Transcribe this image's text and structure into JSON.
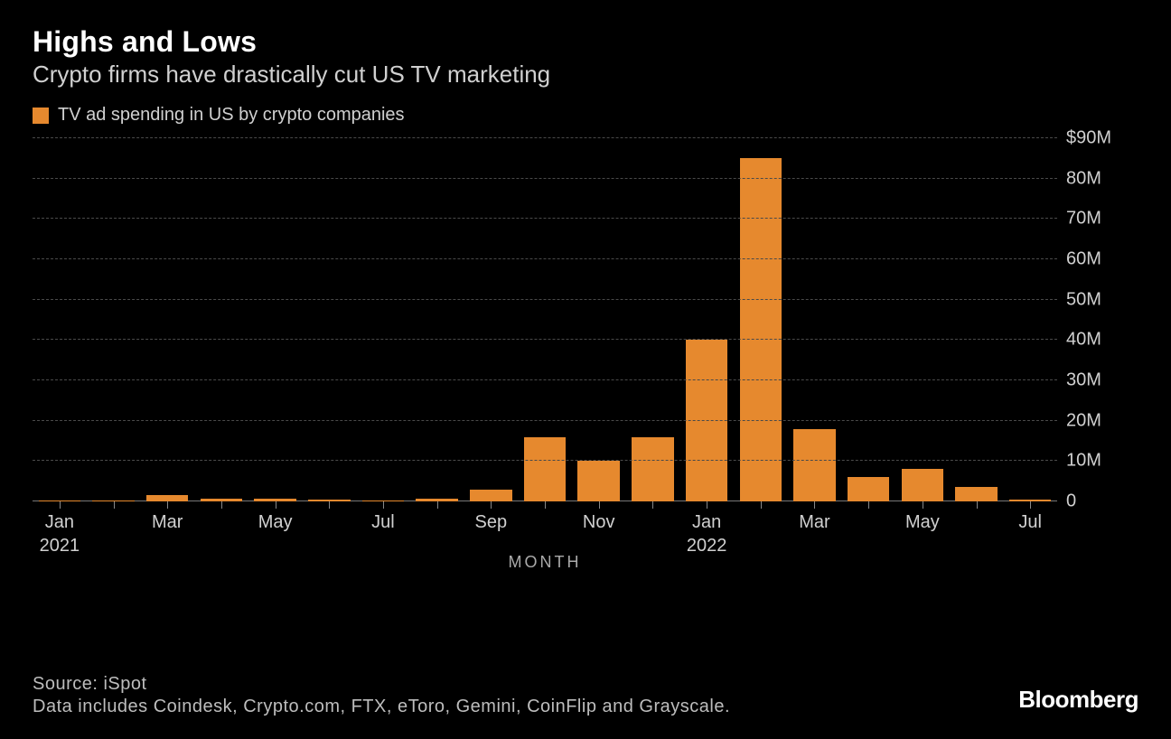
{
  "header": {
    "title": "Highs and Lows",
    "subtitle": "Crypto firms have drastically cut US TV marketing"
  },
  "legend": {
    "label": "TV ad spending in US by crypto companies",
    "swatch_color": "#e6892e"
  },
  "chart": {
    "type": "bar",
    "background_color": "#000000",
    "bar_color": "#e6892e",
    "grid_color": "#4a4a4a",
    "baseline_color": "#777777",
    "text_color": "#d0d0d0",
    "ymin": 0,
    "ymax": 90,
    "y_ticks": [
      {
        "value": 0,
        "label": "0"
      },
      {
        "value": 10,
        "label": "10M"
      },
      {
        "value": 20,
        "label": "20M"
      },
      {
        "value": 30,
        "label": "30M"
      },
      {
        "value": 40,
        "label": "40M"
      },
      {
        "value": 50,
        "label": "50M"
      },
      {
        "value": 60,
        "label": "60M"
      },
      {
        "value": 70,
        "label": "70M"
      },
      {
        "value": 80,
        "label": "80M"
      },
      {
        "value": 90,
        "label": "$90M"
      }
    ],
    "x_axis_title": "MONTH",
    "bar_width_ratio": 0.78,
    "data": [
      {
        "month": "Jan 2021",
        "value": 0.3,
        "label": "Jan\n2021"
      },
      {
        "month": "Feb 2021",
        "value": 0.3,
        "label": ""
      },
      {
        "month": "Mar 2021",
        "value": 1.5,
        "label": "Mar"
      },
      {
        "month": "Apr 2021",
        "value": 0.7,
        "label": ""
      },
      {
        "month": "May 2021",
        "value": 0.7,
        "label": "May"
      },
      {
        "month": "Jun 2021",
        "value": 0.5,
        "label": ""
      },
      {
        "month": "Jul 2021",
        "value": 0.3,
        "label": "Jul"
      },
      {
        "month": "Aug 2021",
        "value": 0.7,
        "label": ""
      },
      {
        "month": "Sep 2021",
        "value": 3.0,
        "label": "Sep"
      },
      {
        "month": "Oct 2021",
        "value": 16.0,
        "label": ""
      },
      {
        "month": "Nov 2021",
        "value": 10.0,
        "label": "Nov"
      },
      {
        "month": "Dec 2021",
        "value": 16.0,
        "label": ""
      },
      {
        "month": "Jan 2022",
        "value": 40.0,
        "label": "Jan\n2022"
      },
      {
        "month": "Feb 2022",
        "value": 85.0,
        "label": ""
      },
      {
        "month": "Mar 2022",
        "value": 18.0,
        "label": "Mar"
      },
      {
        "month": "Apr 2022",
        "value": 6.0,
        "label": ""
      },
      {
        "month": "May 2022",
        "value": 8.0,
        "label": "May"
      },
      {
        "month": "Jun 2022",
        "value": 3.5,
        "label": ""
      },
      {
        "month": "Jul 2022",
        "value": 0.5,
        "label": "Jul"
      }
    ]
  },
  "footer": {
    "source": "Source: iSpot",
    "note": "Data includes Coindesk, Crypto.com, FTX, eToro, Gemini, CoinFlip and Grayscale.",
    "logo": "Bloomberg"
  }
}
